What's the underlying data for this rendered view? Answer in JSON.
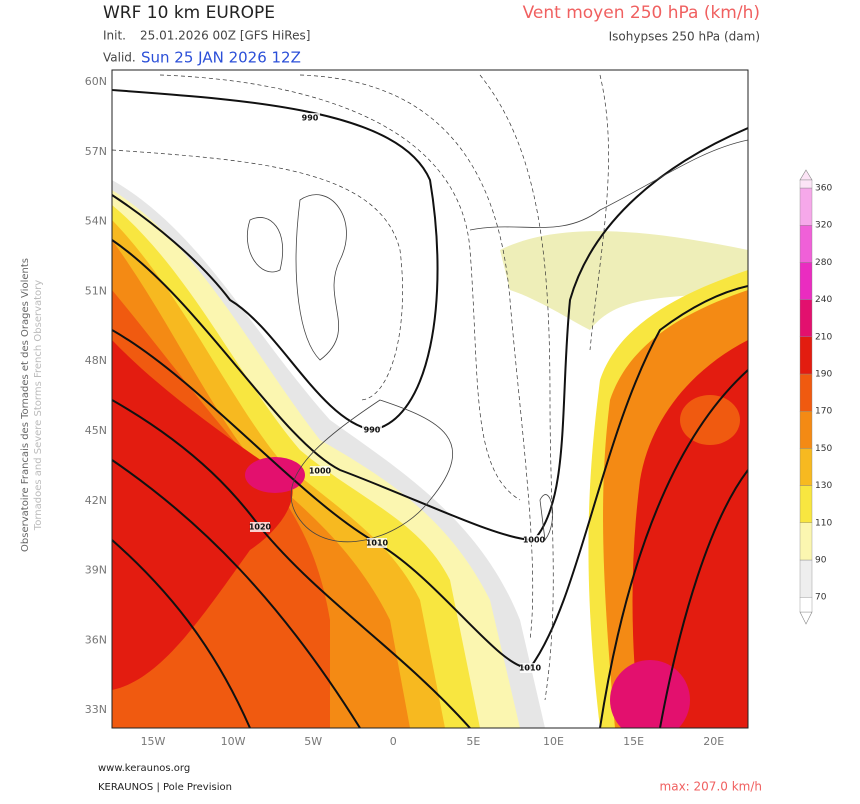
{
  "header": {
    "title": "WRF 10 km EUROPE",
    "init_label": "Init.",
    "init": "25.01.2026 00Z [GFS HiRes]",
    "valid_label": "Valid.",
    "valid": "Sun 25 JAN 2026 12Z",
    "field": "Vent moyen 250 hPa (km/h)",
    "contours": "Isohypses 250 hPa (dam)"
  },
  "map": {
    "lat_labels": [
      "60N",
      "57N",
      "54N",
      "51N",
      "48N",
      "45N",
      "42N",
      "39N",
      "36N",
      "33N"
    ],
    "lon_labels": [
      "15W",
      "10W",
      "5W",
      "0",
      "5E",
      "10E",
      "15E",
      "20E"
    ],
    "contour_labels": [
      "990",
      "990",
      "1000",
      "1000",
      "1010",
      "1010",
      "1020"
    ]
  },
  "colorbar": {
    "levels": [
      70,
      90,
      110,
      130,
      150,
      170,
      190,
      210,
      240,
      280,
      320,
      360
    ],
    "colors": [
      "#eeeeee",
      "#fbf6b0",
      "#f8e640",
      "#f7b920",
      "#f48a14",
      "#f05a10",
      "#e31c10",
      "#e3106e",
      "#ea2cc0",
      "#f060d8",
      "#f6a8ea"
    ]
  },
  "side_text": {
    "line1": "Observatoire Francais des Tornades et des Orages Violents",
    "line2": "Tornadoes and Severe Storms French Observatory"
  },
  "footer": {
    "site": "www.keraunos.org",
    "credit": "KERAUNOS | Pole Prevision",
    "max": "max: 207.0 km/h"
  }
}
